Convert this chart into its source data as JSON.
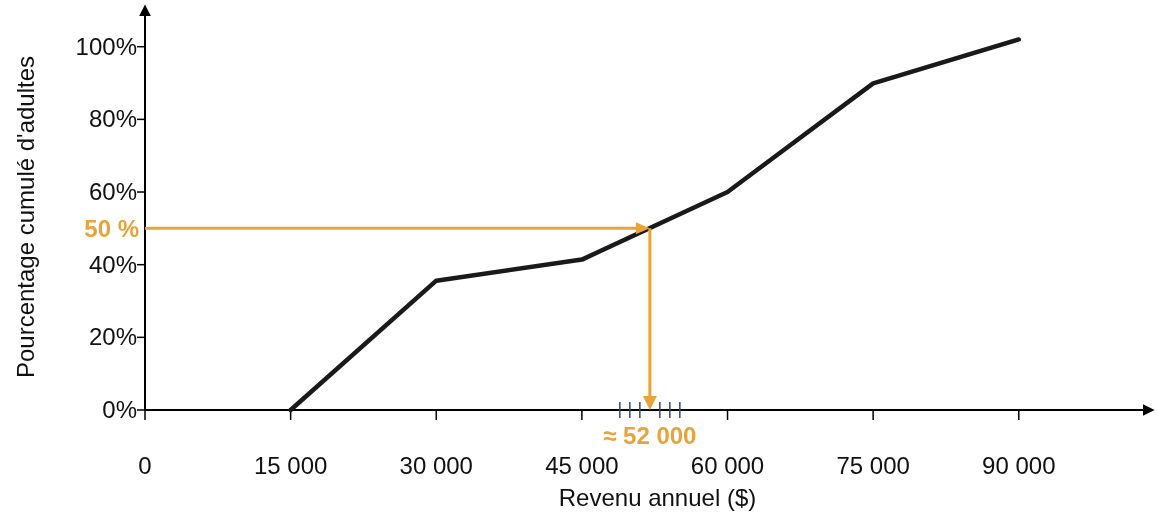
{
  "chart_data": {
    "type": "line",
    "xlabel": "Revenu annuel ($)",
    "ylabel": "Pourcentage cumulé d'adultes",
    "x": [
      15000,
      30000,
      45000,
      60000,
      75000,
      90000
    ],
    "series": [
      {
        "color": "#1a1a1a",
        "values": [
          0,
          35.6,
          41.4,
          60,
          89.9,
          102
        ]
      }
    ],
    "xlim": [
      0,
      103000
    ],
    "ylim": [
      0,
      109
    ],
    "xticks": [
      {
        "value": 0,
        "label": "0"
      },
      {
        "value": 15000,
        "label": "15 000"
      },
      {
        "value": 30000,
        "label": "30 000"
      },
      {
        "value": 45000,
        "label": "45 000"
      },
      {
        "value": 60000,
        "label": "60 000"
      },
      {
        "value": 75000,
        "label": "75 000"
      },
      {
        "value": 90000,
        "label": "90 000"
      }
    ],
    "yticks": [
      {
        "value": 0,
        "label": "0%"
      },
      {
        "value": 20,
        "label": "20%"
      },
      {
        "value": 40,
        "label": "40%"
      },
      {
        "value": 60,
        "label": "60%"
      },
      {
        "value": 80,
        "label": "80%"
      },
      {
        "value": 100,
        "label": "100%"
      }
    ],
    "ref_lines": [
      {
        "axis": "y",
        "value": 50,
        "label": "50 %",
        "color": "#e8a33a"
      },
      {
        "axis": "x",
        "value": 52000,
        "label": "≈ 52 000",
        "color": "#e8a33a"
      }
    ],
    "grid": false,
    "marker": "none",
    "line_style": "solid"
  }
}
